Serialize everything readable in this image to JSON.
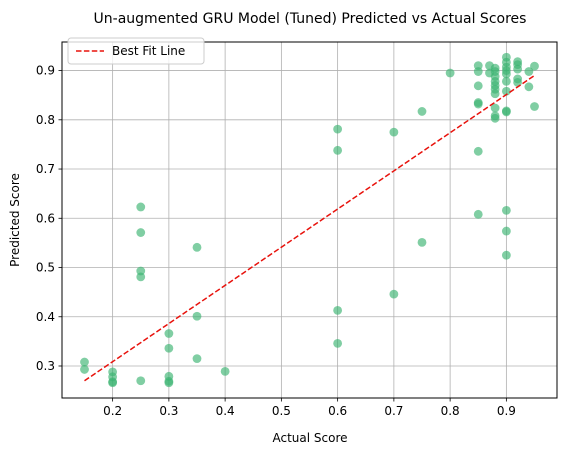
{
  "chart_data": {
    "type": "scatter",
    "title": "Un-augmented GRU Model (Tuned) Predicted vs Actual Scores",
    "xlabel": "Actual Score",
    "ylabel": "Predicted Score",
    "xlim": [
      0.11,
      0.99
    ],
    "ylim": [
      0.235,
      0.958
    ],
    "xticks": [
      0.2,
      0.3,
      0.4,
      0.5,
      0.6,
      0.7,
      0.8,
      0.9
    ],
    "xtick_labels": [
      "0.2",
      "0.3",
      "0.4",
      "0.5",
      "0.6",
      "0.7",
      "0.8",
      "0.9"
    ],
    "yticks": [
      0.3,
      0.4,
      0.5,
      0.6,
      0.7,
      0.8,
      0.9
    ],
    "ytick_labels": [
      "0.3",
      "0.4",
      "0.5",
      "0.6",
      "0.7",
      "0.8",
      "0.9"
    ],
    "grid": true,
    "legend_placement": "top-left",
    "point_color": "#3cb371",
    "fit_line_color": "#e8120c",
    "points": [
      {
        "x": 0.15,
        "y": 0.308
      },
      {
        "x": 0.15,
        "y": 0.293
      },
      {
        "x": 0.2,
        "y": 0.288
      },
      {
        "x": 0.2,
        "y": 0.278
      },
      {
        "x": 0.2,
        "y": 0.268
      },
      {
        "x": 0.2,
        "y": 0.266
      },
      {
        "x": 0.25,
        "y": 0.623
      },
      {
        "x": 0.25,
        "y": 0.571
      },
      {
        "x": 0.25,
        "y": 0.493
      },
      {
        "x": 0.25,
        "y": 0.481
      },
      {
        "x": 0.25,
        "y": 0.27
      },
      {
        "x": 0.3,
        "y": 0.366
      },
      {
        "x": 0.3,
        "y": 0.336
      },
      {
        "x": 0.3,
        "y": 0.279
      },
      {
        "x": 0.3,
        "y": 0.269
      },
      {
        "x": 0.3,
        "y": 0.266
      },
      {
        "x": 0.35,
        "y": 0.541
      },
      {
        "x": 0.35,
        "y": 0.401
      },
      {
        "x": 0.35,
        "y": 0.315
      },
      {
        "x": 0.4,
        "y": 0.289
      },
      {
        "x": 0.6,
        "y": 0.781
      },
      {
        "x": 0.6,
        "y": 0.738
      },
      {
        "x": 0.6,
        "y": 0.413
      },
      {
        "x": 0.6,
        "y": 0.346
      },
      {
        "x": 0.7,
        "y": 0.775
      },
      {
        "x": 0.7,
        "y": 0.446
      },
      {
        "x": 0.75,
        "y": 0.817
      },
      {
        "x": 0.75,
        "y": 0.551
      },
      {
        "x": 0.8,
        "y": 0.895
      },
      {
        "x": 0.85,
        "y": 0.91
      },
      {
        "x": 0.85,
        "y": 0.898
      },
      {
        "x": 0.85,
        "y": 0.869
      },
      {
        "x": 0.85,
        "y": 0.835
      },
      {
        "x": 0.85,
        "y": 0.832
      },
      {
        "x": 0.85,
        "y": 0.736
      },
      {
        "x": 0.85,
        "y": 0.608
      },
      {
        "x": 0.87,
        "y": 0.91
      },
      {
        "x": 0.87,
        "y": 0.895
      },
      {
        "x": 0.88,
        "y": 0.905
      },
      {
        "x": 0.88,
        "y": 0.898
      },
      {
        "x": 0.88,
        "y": 0.888
      },
      {
        "x": 0.88,
        "y": 0.878
      },
      {
        "x": 0.88,
        "y": 0.87
      },
      {
        "x": 0.88,
        "y": 0.862
      },
      {
        "x": 0.88,
        "y": 0.853
      },
      {
        "x": 0.88,
        "y": 0.824
      },
      {
        "x": 0.88,
        "y": 0.808
      },
      {
        "x": 0.88,
        "y": 0.803
      },
      {
        "x": 0.9,
        "y": 0.927
      },
      {
        "x": 0.9,
        "y": 0.917
      },
      {
        "x": 0.9,
        "y": 0.907
      },
      {
        "x": 0.9,
        "y": 0.9
      },
      {
        "x": 0.9,
        "y": 0.893
      },
      {
        "x": 0.9,
        "y": 0.878
      },
      {
        "x": 0.9,
        "y": 0.858
      },
      {
        "x": 0.9,
        "y": 0.818
      },
      {
        "x": 0.9,
        "y": 0.816
      },
      {
        "x": 0.9,
        "y": 0.616
      },
      {
        "x": 0.9,
        "y": 0.574
      },
      {
        "x": 0.9,
        "y": 0.525
      },
      {
        "x": 0.92,
        "y": 0.918
      },
      {
        "x": 0.92,
        "y": 0.912
      },
      {
        "x": 0.92,
        "y": 0.903
      },
      {
        "x": 0.92,
        "y": 0.883
      },
      {
        "x": 0.92,
        "y": 0.876
      },
      {
        "x": 0.94,
        "y": 0.898
      },
      {
        "x": 0.94,
        "y": 0.867
      },
      {
        "x": 0.95,
        "y": 0.909
      },
      {
        "x": 0.95,
        "y": 0.827
      }
    ],
    "series": [
      {
        "name": "Best Fit Line",
        "style": "dashed",
        "x": [
          0.15,
          0.95
        ],
        "y": [
          0.27,
          0.89
        ]
      }
    ]
  }
}
